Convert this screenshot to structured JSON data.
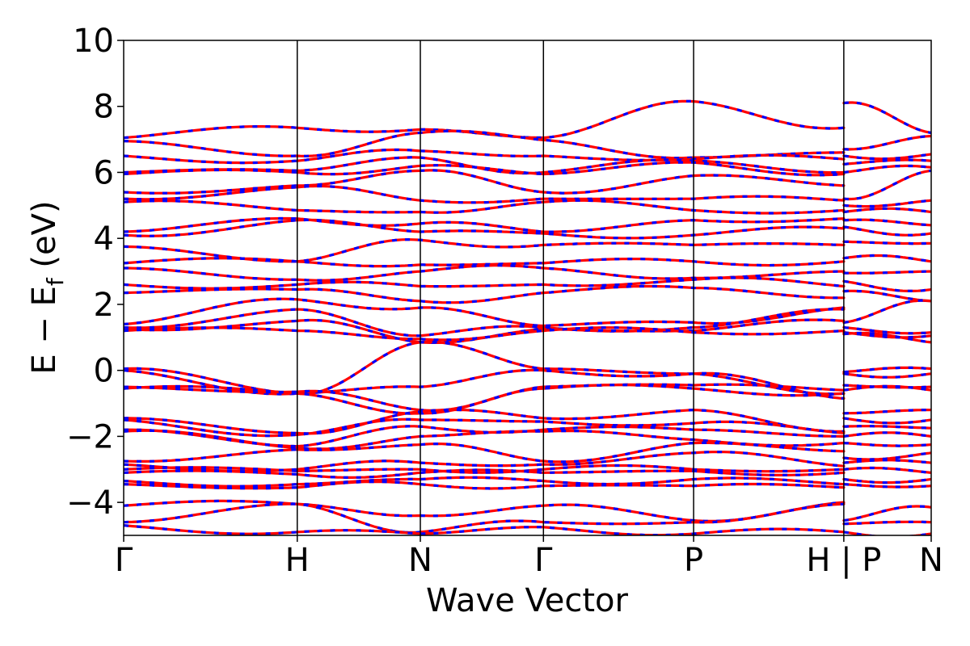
{
  "chart_data": {
    "type": "line",
    "title": "",
    "xlabel": "Wave Vector",
    "ylabel_parts": {
      "main": "E − E",
      "sub": "f",
      "unit": " (eV)"
    },
    "ylim": [
      -5,
      10
    ],
    "yticks": [
      -4,
      -2,
      0,
      2,
      4,
      6,
      8,
      10
    ],
    "ytick_labels": [
      "−4",
      "−2",
      "0",
      "2",
      "4",
      "6",
      "8",
      "10"
    ],
    "xlim": [
      0,
      6.56
    ],
    "kpoints": [
      {
        "label": "Γ",
        "x": 0.0
      },
      {
        "label": "H",
        "x": 1.41
      },
      {
        "label": "N",
        "x": 2.41
      },
      {
        "label": "Γ",
        "x": 3.41
      },
      {
        "label": "P",
        "x": 4.63
      },
      {
        "label": "H | P",
        "x": 5.85
      },
      {
        "label": "N",
        "x": 6.56
      }
    ],
    "legend": "none",
    "grid": false,
    "series_colors": {
      "dft": "#ff0000",
      "interp": "#0000ff"
    },
    "series": [
      {
        "values_at_kpoints": [
          7.05,
          7.35,
          7.3,
          7.05,
          8.15,
          7.35,
          8.1,
          7.2
        ]
      },
      {
        "values_at_kpoints": [
          6.95,
          6.5,
          7.2,
          6.98,
          6.45,
          6.6,
          6.7,
          7.1
        ]
      },
      {
        "values_at_kpoints": [
          6.5,
          6.35,
          6.65,
          6.5,
          6.4,
          6.4,
          6.5,
          6.55
        ]
      },
      {
        "values_at_kpoints": [
          6.0,
          6.05,
          6.45,
          6.0,
          6.35,
          6.0,
          6.25,
          6.35
        ]
      },
      {
        "values_at_kpoints": [
          5.95,
          6.0,
          6.2,
          5.95,
          6.3,
          5.95,
          6.0,
          6.15
        ]
      },
      {
        "values_at_kpoints": [
          5.4,
          5.6,
          6.05,
          5.4,
          5.9,
          5.6,
          5.2,
          6.05
        ]
      },
      {
        "values_at_kpoints": [
          5.2,
          5.55,
          5.15,
          5.2,
          5.2,
          5.15,
          5.0,
          5.15
        ]
      },
      {
        "values_at_kpoints": [
          5.1,
          4.85,
          4.8,
          5.1,
          4.85,
          4.85,
          4.8,
          4.8
        ]
      },
      {
        "values_at_kpoints": [
          4.2,
          4.6,
          4.45,
          4.2,
          4.55,
          4.6,
          4.55,
          4.4
        ]
      },
      {
        "values_at_kpoints": [
          4.1,
          4.55,
          4.2,
          4.15,
          4.1,
          4.3,
          4.35,
          4.15
        ]
      },
      {
        "values_at_kpoints": [
          3.75,
          3.3,
          3.95,
          3.8,
          3.8,
          3.8,
          3.9,
          3.85
        ]
      },
      {
        "values_at_kpoints": [
          3.25,
          3.3,
          3.2,
          3.25,
          3.3,
          3.3,
          3.4,
          3.3
        ]
      },
      {
        "values_at_kpoints": [
          3.1,
          2.75,
          3.0,
          3.1,
          2.8,
          3.0,
          2.95,
          3.0
        ]
      },
      {
        "values_at_kpoints": [
          2.6,
          2.6,
          2.55,
          2.6,
          2.75,
          2.55,
          2.7,
          2.45
        ]
      },
      {
        "values_at_kpoints": [
          2.35,
          2.45,
          2.1,
          2.35,
          2.5,
          2.2,
          2.4,
          2.1
        ]
      },
      {
        "values_at_kpoints": [
          1.4,
          2.15,
          1.9,
          1.35,
          1.45,
          1.9,
          1.45,
          2.1
        ]
      },
      {
        "values_at_kpoints": [
          1.3,
          1.85,
          1.05,
          1.3,
          1.3,
          1.85,
          1.3,
          1.15
        ]
      },
      {
        "values_at_kpoints": [
          1.25,
          1.5,
          0.85,
          1.25,
          1.2,
          1.5,
          1.15,
          1.05
        ]
      },
      {
        "values_at_kpoints": [
          1.2,
          1.2,
          0.95,
          1.2,
          1.15,
          1.2,
          1.1,
          0.85
        ]
      },
      {
        "values_at_kpoints": [
          0.05,
          -0.7,
          0.85,
          0.05,
          -0.1,
          -0.7,
          -0.05,
          0.05
        ]
      },
      {
        "values_at_kpoints": [
          0.0,
          -0.7,
          -0.5,
          0.0,
          -0.1,
          -0.85,
          -0.1,
          -0.1
        ]
      },
      {
        "values_at_kpoints": [
          -0.5,
          -0.65,
          -1.2,
          -0.5,
          -0.45,
          -0.6,
          -0.45,
          -0.5
        ]
      },
      {
        "values_at_kpoints": [
          -0.55,
          -0.7,
          -1.3,
          -0.55,
          -0.55,
          -0.7,
          -0.6,
          -0.6
        ]
      },
      {
        "values_at_kpoints": [
          -1.45,
          -1.9,
          -1.25,
          -1.45,
          -1.2,
          -1.85,
          -1.3,
          -1.2
        ]
      },
      {
        "values_at_kpoints": [
          -1.5,
          -1.95,
          -1.5,
          -1.55,
          -1.6,
          -1.9,
          -1.45,
          -1.5
        ]
      },
      {
        "values_at_kpoints": [
          -1.8,
          -2.3,
          -1.7,
          -1.8,
          -1.8,
          -2.0,
          -1.7,
          -1.75
        ]
      },
      {
        "values_at_kpoints": [
          -1.85,
          -2.35,
          -2.0,
          -1.85,
          -2.1,
          -2.2,
          -2.0,
          -2.0
        ]
      },
      {
        "values_at_kpoints": [
          -2.75,
          -2.4,
          -2.25,
          -2.75,
          -2.2,
          -2.45,
          -2.2,
          -2.25
        ]
      },
      {
        "values_at_kpoints": [
          -2.85,
          -3.0,
          -2.8,
          -2.85,
          -2.5,
          -2.9,
          -2.65,
          -2.5
        ]
      },
      {
        "values_at_kpoints": [
          -3.0,
          -3.05,
          -3.0,
          -3.0,
          -3.0,
          -3.0,
          -2.8,
          -2.8
        ]
      },
      {
        "values_at_kpoints": [
          -3.1,
          -3.15,
          -3.1,
          -3.1,
          -3.05,
          -3.1,
          -3.0,
          -3.1
        ]
      },
      {
        "values_at_kpoints": [
          -3.35,
          -3.45,
          -3.3,
          -3.35,
          -3.3,
          -3.45,
          -3.3,
          -3.3
        ]
      },
      {
        "values_at_kpoints": [
          -3.45,
          -3.55,
          -3.45,
          -3.5,
          -3.5,
          -3.55,
          -3.45,
          -3.5
        ]
      },
      {
        "values_at_kpoints": [
          -4.1,
          -4.05,
          -4.4,
          -4.1,
          -4.55,
          -4.0,
          -4.55,
          -4.15
        ]
      },
      {
        "values_at_kpoints": [
          -4.6,
          -4.05,
          -4.9,
          -4.6,
          -4.6,
          -4.05,
          -4.65,
          -4.6
        ]
      },
      {
        "values_at_kpoints": [
          -4.7,
          -4.9,
          -4.95,
          -4.75,
          -4.95,
          -4.9,
          -4.9,
          -4.95
        ]
      }
    ]
  }
}
